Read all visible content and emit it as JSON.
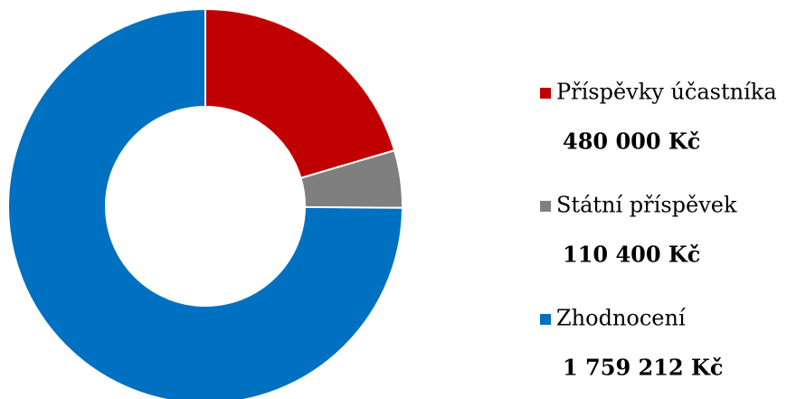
{
  "chart_data": {
    "type": "donut",
    "categories": [
      "Příspěvky účastníka",
      "Státní příspěvek",
      "Zhodnocení"
    ],
    "values": [
      480000,
      110400,
      1759212
    ],
    "value_labels": [
      "480 000 Kč",
      "110 400 Kč",
      "1 759 212 Kč"
    ],
    "colors": [
      "#c00000",
      "#7f7f7f",
      "#0070c0"
    ],
    "legend": "right"
  }
}
